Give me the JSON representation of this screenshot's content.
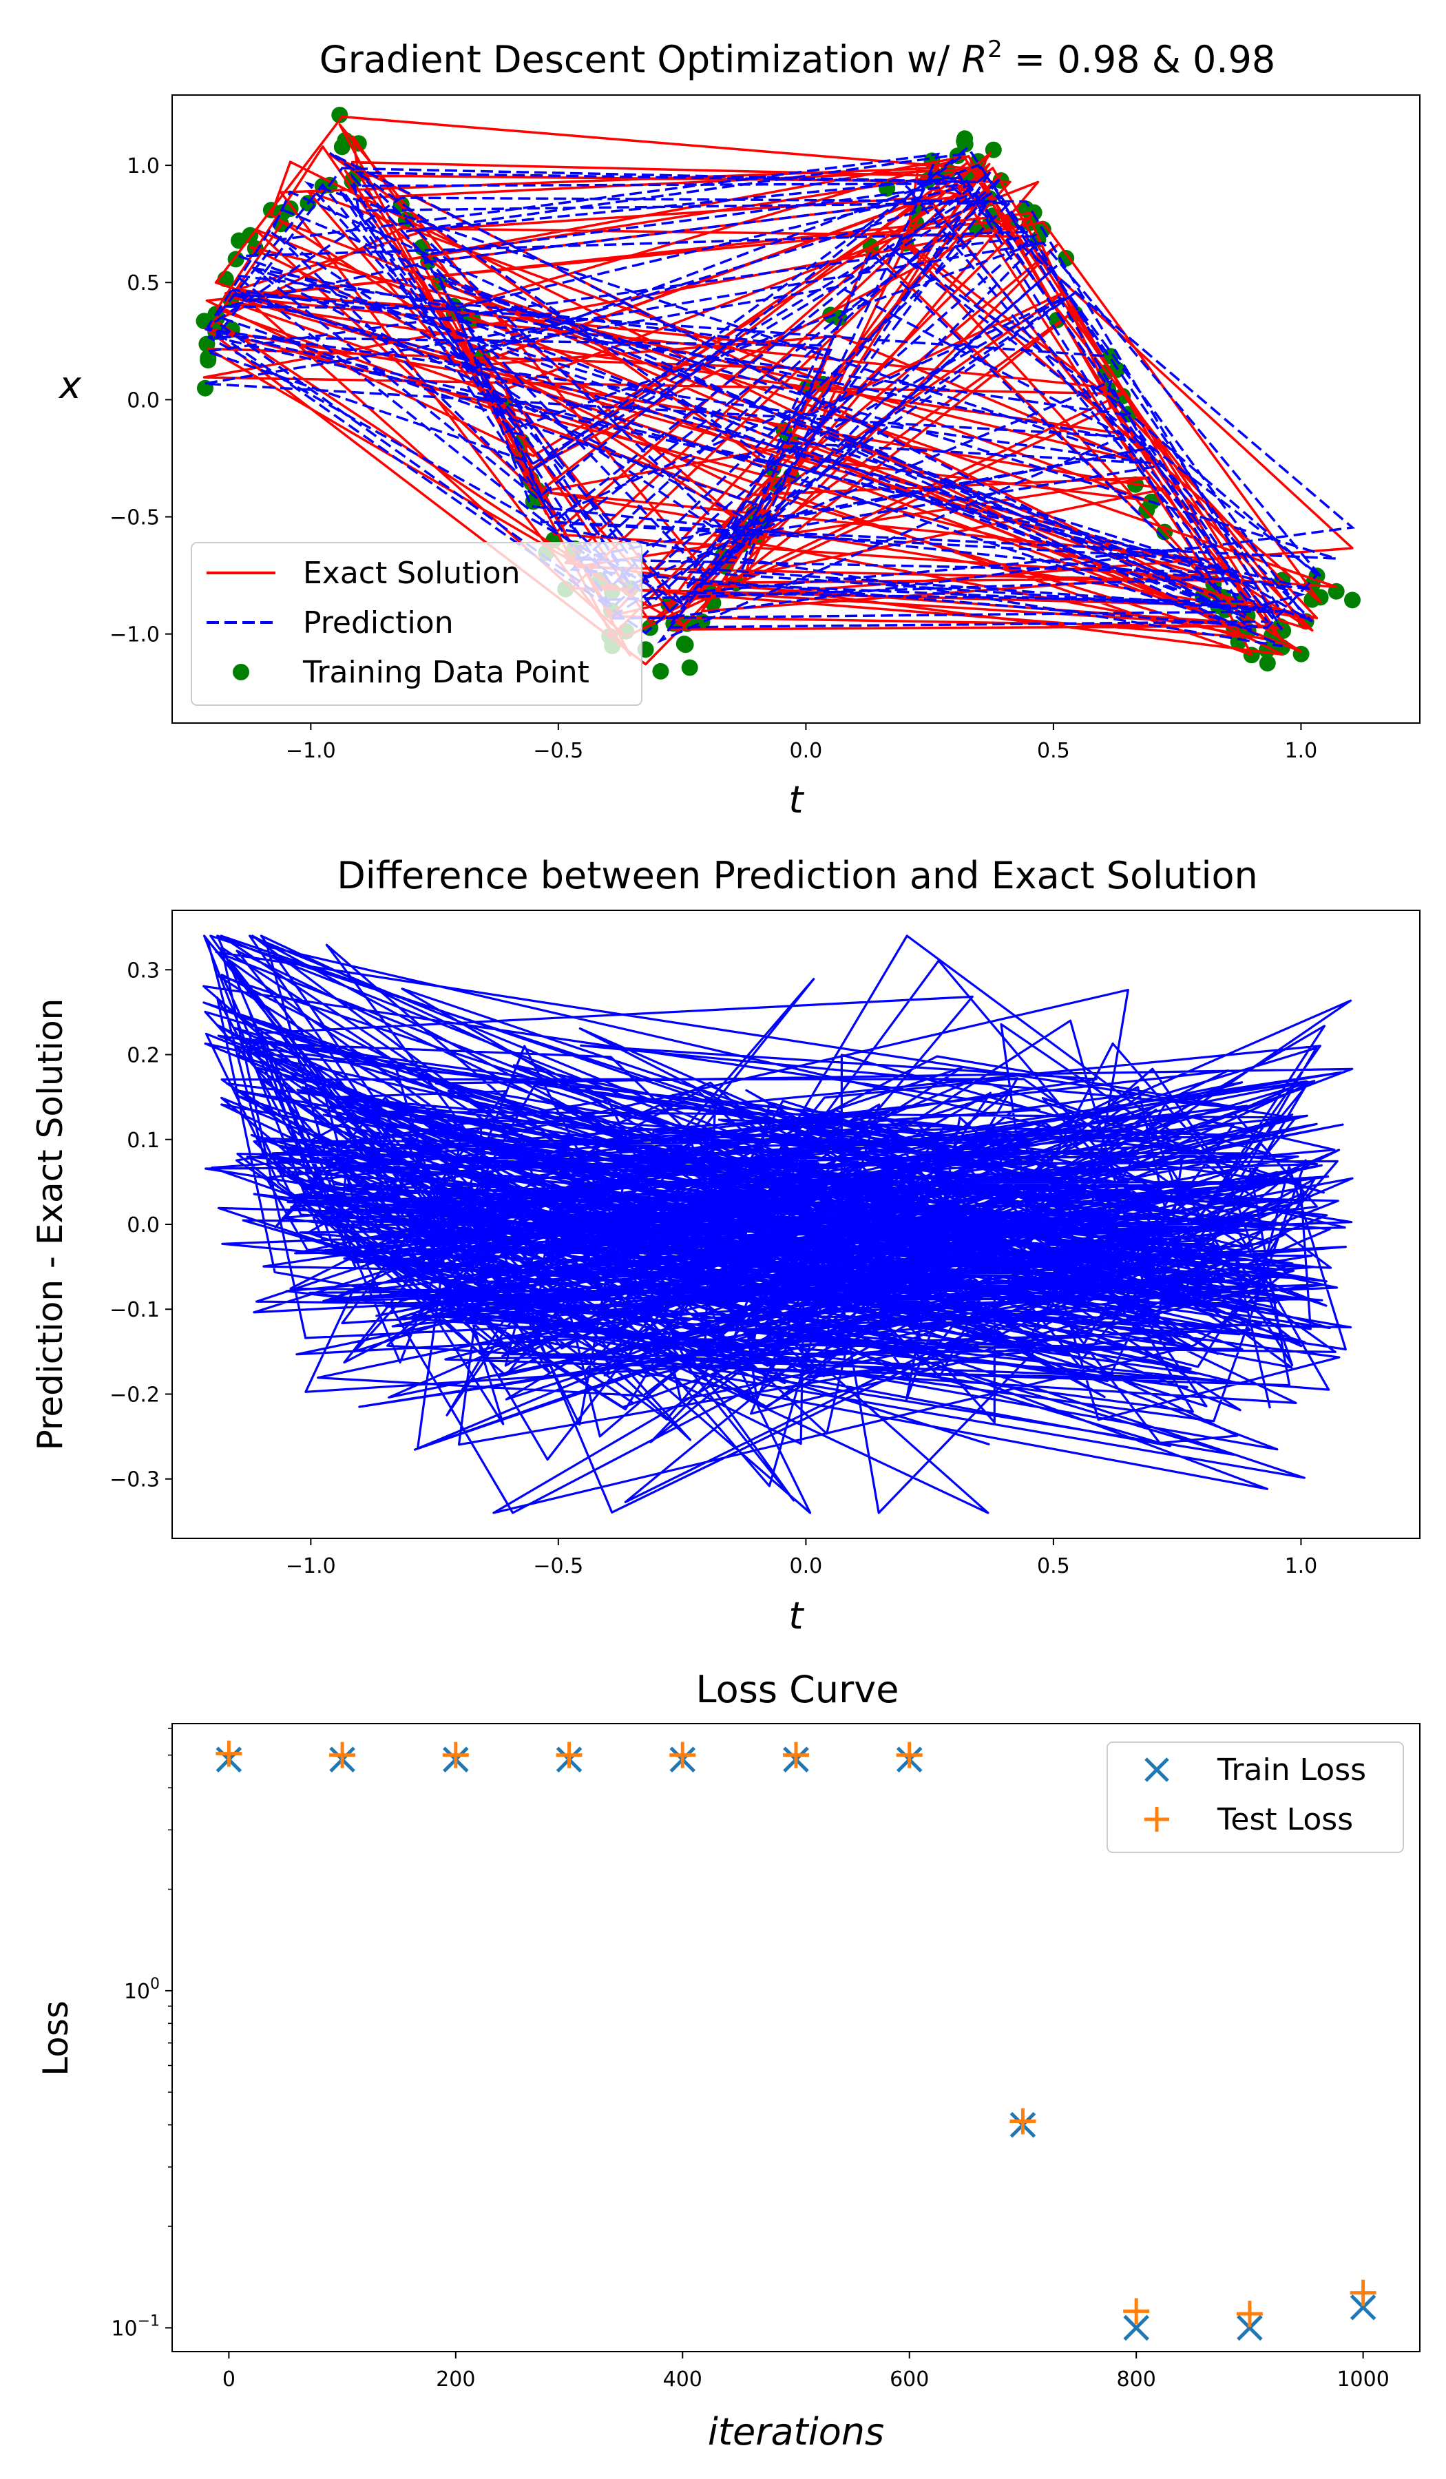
{
  "chart_data": [
    {
      "type": "line",
      "title_prefix": "Gradient Descent Optimization w/ ",
      "title_var": "R",
      "title_sup": "2",
      "title_suffix": " = 0.98 & 0.98",
      "xlabel": "t",
      "ylabel": "x",
      "xlim": [
        -1.28,
        1.24
      ],
      "ylim": [
        -1.38,
        1.3
      ],
      "xticks": [
        -1.0,
        -0.5,
        0.0,
        0.5,
        1.0
      ],
      "xtick_labels": [
        "−1.0",
        "−0.5",
        "0.0",
        "0.5",
        "1.0"
      ],
      "yticks": [
        -1.0,
        -0.5,
        0.0,
        0.5,
        1.0
      ],
      "ytick_labels": [
        "−1.0",
        "−0.5",
        "0.0",
        "0.5",
        "1.0"
      ],
      "legend_position": "lower-left",
      "legend": [
        "Exact Solution",
        "Prediction",
        "Training Data Point"
      ],
      "series": [
        {
          "name": "Exact Solution",
          "style": "solid",
          "color": "#ff0000",
          "function": "sin(5t)",
          "t_range": [
            -1.22,
            1.11
          ]
        },
        {
          "name": "Prediction",
          "style": "dashed",
          "color": "#0000ff",
          "function": "sin(5t) fit",
          "t_range": [
            -1.22,
            1.11
          ]
        },
        {
          "name": "Training Data Point",
          "style": "marker",
          "color": "#008000"
        }
      ]
    },
    {
      "type": "line",
      "title": "Difference between Prediction and Exact Solution",
      "xlabel": "t",
      "ylabel": "Prediction - Exact Solution",
      "xlim": [
        -1.28,
        1.24
      ],
      "ylim": [
        -0.37,
        0.37
      ],
      "xticks": [
        -1.0,
        -0.5,
        0.0,
        0.5,
        1.0
      ],
      "xtick_labels": [
        "−1.0",
        "−0.5",
        "0.0",
        "0.5",
        "1.0"
      ],
      "yticks": [
        -0.3,
        -0.2,
        -0.1,
        0.0,
        0.1,
        0.2,
        0.3
      ],
      "ytick_labels": [
        "−0.3",
        "−0.2",
        "−0.1",
        "0.0",
        "0.1",
        "0.2",
        "0.3"
      ],
      "series": [
        {
          "style": "solid",
          "color": "#0000ff",
          "range": [
            -0.34,
            0.34
          ]
        }
      ]
    },
    {
      "type": "scatter",
      "title": "Loss Curve",
      "xlabel": "iterations",
      "ylabel": "Loss",
      "xlim": [
        -50,
        1050
      ],
      "ylim": [
        0.085,
        6.2
      ],
      "yscale": "log",
      "xticks": [
        0,
        200,
        400,
        600,
        800,
        1000
      ],
      "xtick_labels": [
        "0",
        "200",
        "400",
        "600",
        "800",
        "1000"
      ],
      "yticks": [
        0.1,
        1.0
      ],
      "ytick_base": "10",
      "ytick_exponents": [
        "−1",
        "0"
      ],
      "legend_position": "top-right",
      "x": [
        0,
        100,
        200,
        300,
        400,
        500,
        600,
        700,
        800,
        900,
        1000
      ],
      "series": [
        {
          "name": "Train Loss",
          "marker": "x",
          "color": "#1f77b4",
          "values": [
            4.85,
            4.85,
            4.85,
            4.85,
            4.85,
            4.85,
            4.85,
            0.4,
            0.1,
            0.1,
            0.115
          ]
        },
        {
          "name": "Test Loss",
          "marker": "+",
          "color": "#ff7f0e",
          "values": [
            5.05,
            5.0,
            5.0,
            5.0,
            5.0,
            5.0,
            5.0,
            0.41,
            0.112,
            0.11,
            0.127
          ]
        }
      ]
    }
  ]
}
